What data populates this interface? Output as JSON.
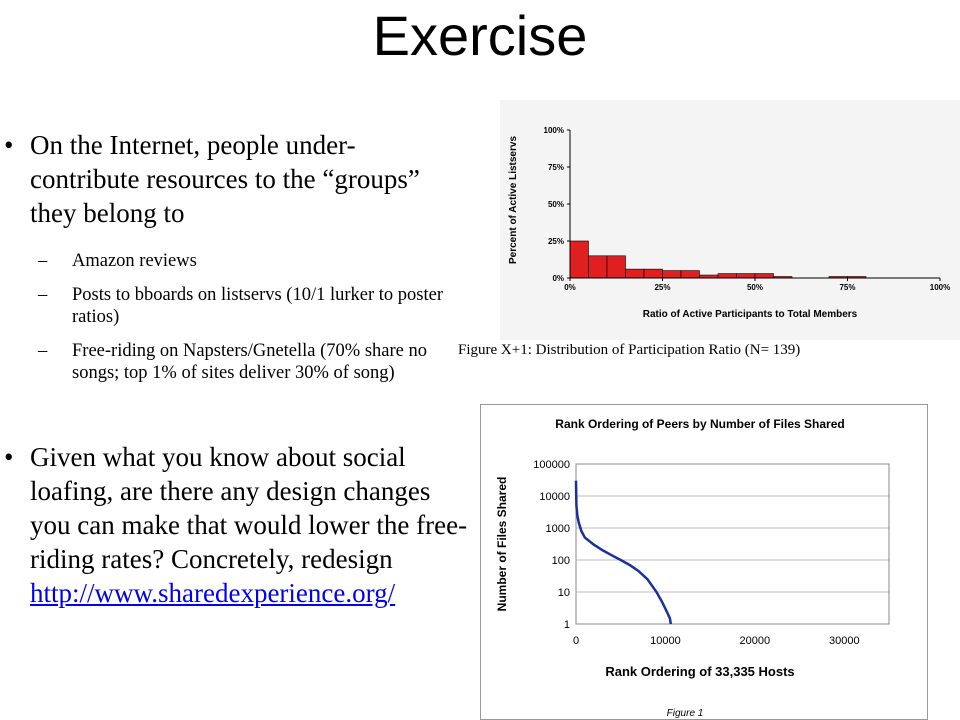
{
  "slide": {
    "title": "Exercise",
    "bullet1": "On the Internet, people under-contribute resources to the “groups” they belong to",
    "sub_items": [
      "Amazon reviews",
      "Posts to bboards on listservs (10/1 lurker to poster ratios)",
      "Free-riding on Napsters/Gnetella (70% share no songs; top 1% of sites deliver 30% of song)"
    ],
    "bullet2": "Given what you know about social loafing, are there any design changes you can make that would lower the free-riding rates? Concretely, redesign",
    "link": "http://www.sharedexperience.org/",
    "bullet_glyph": "•",
    "dash_glyph": "–"
  },
  "caption1": "Figure X+1: Distribution of Participation Ratio (N= 139)",
  "caption2": "Figure 1",
  "chart_data": [
    {
      "type": "bar",
      "x": [
        0,
        5,
        10,
        15,
        20,
        25,
        30,
        35,
        40,
        45,
        50,
        55,
        60,
        65,
        70,
        75,
        80,
        85,
        90,
        95
      ],
      "values": [
        25,
        15,
        15,
        6,
        6,
        5,
        5,
        2,
        3,
        3,
        3,
        1,
        0,
        0,
        1,
        1,
        0,
        0,
        0,
        0
      ],
      "xticks": [
        "0%",
        "25%",
        "50%",
        "75%",
        "100%"
      ],
      "yticks": [
        "0%",
        "25%",
        "50%",
        "75%",
        "100%"
      ],
      "xlim": [
        0,
        100
      ],
      "ylim": [
        0,
        100
      ],
      "xlabel": "Ratio of Active Participants to Total Members",
      "ylabel": "Percent of Active Listservs",
      "bar_color": "#e02020"
    },
    {
      "type": "line",
      "title": "Rank Ordering of Peers by Number of Files Shared",
      "xlabel": "Rank Ordering of 33,335 Hosts",
      "ylabel": "Number of Files Shared",
      "x": [
        1,
        50,
        150,
        300,
        600,
        1000,
        2000,
        3000,
        4000,
        5000,
        6000,
        7000,
        8000,
        9000,
        9600,
        10000,
        10300,
        10500,
        10600
      ],
      "y": [
        30000,
        5000,
        2500,
        1500,
        800,
        500,
        300,
        200,
        140,
        100,
        70,
        45,
        25,
        10,
        5,
        3,
        2,
        1.5,
        1
      ],
      "xticks": [
        "0",
        "10000",
        "20000",
        "30000"
      ],
      "yticks": [
        "1",
        "10",
        "100",
        "1000",
        "10000",
        "100000"
      ],
      "xlim": [
        0,
        35000
      ],
      "ylim": [
        1,
        100000
      ],
      "yscale": "log",
      "line_color": "#1a2f9c"
    }
  ]
}
